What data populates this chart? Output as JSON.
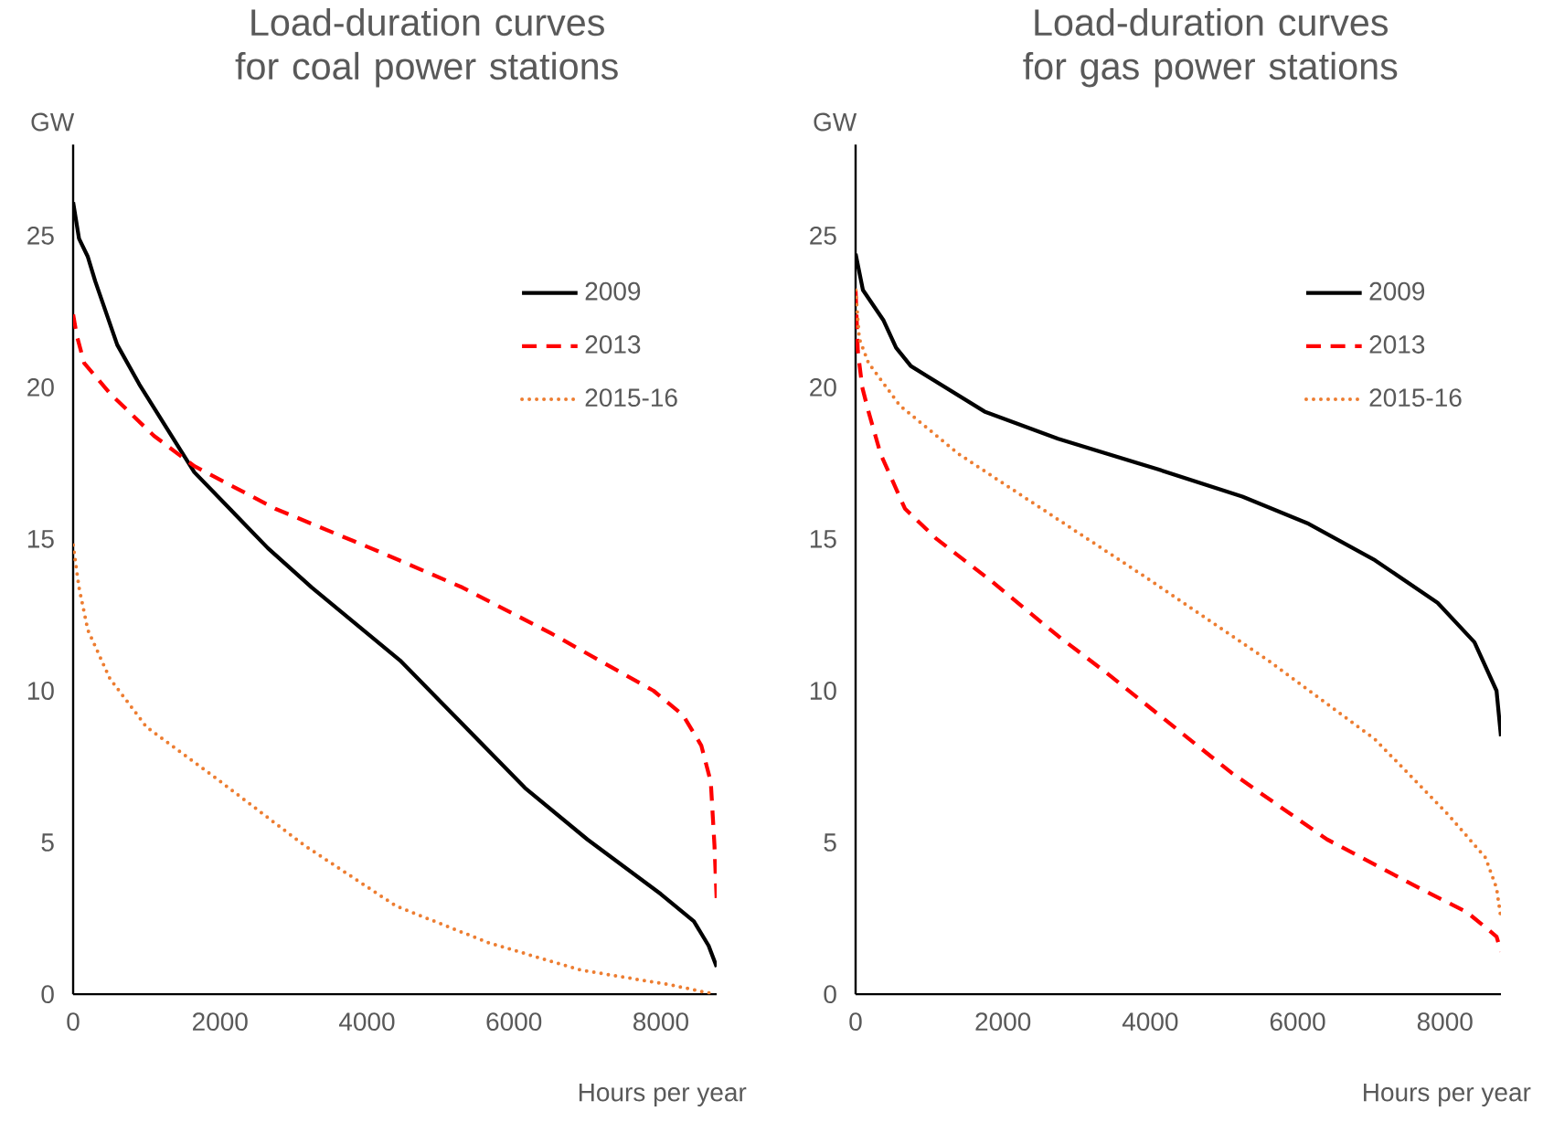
{
  "chart_data": [
    {
      "type": "line",
      "title": "Load-duration curves for coal power stations",
      "ylabel": "GW",
      "xlabel": "Hours per year",
      "xlim": [
        0,
        8760
      ],
      "xticks": [
        0,
        2000,
        4000,
        6000,
        8000
      ],
      "ylim": [
        0,
        28
      ],
      "yticks": [
        0,
        5,
        10,
        15,
        20,
        25
      ],
      "legend": "top right",
      "series": [
        {
          "name": "2009",
          "color": "#000000",
          "line_style": "solid",
          "x": [
            0,
            80,
            200,
            300,
            600,
            900,
            1650,
            2650,
            3250,
            4150,
            4450,
            6150,
            7000,
            8000,
            8450,
            8650,
            8760
          ],
          "values": [
            26.1,
            24.9,
            24.3,
            23.5,
            21.4,
            20.1,
            17.2,
            14.7,
            13.4,
            11.6,
            11.0,
            6.8,
            5.1,
            3.3,
            2.4,
            1.6,
            0.9
          ]
        },
        {
          "name": "2013",
          "color": "#ff0000",
          "line_style": "dashed",
          "x": [
            0,
            50,
            150,
            500,
            1100,
            1650,
            2750,
            4150,
            5300,
            6500,
            7900,
            8300,
            8550,
            8680,
            8730,
            8760
          ],
          "values": [
            22.4,
            21.7,
            20.8,
            19.8,
            18.4,
            17.4,
            16.0,
            14.6,
            13.4,
            11.9,
            10.0,
            9.2,
            8.2,
            7.0,
            4.9,
            3.1
          ]
        },
        {
          "name": "2015-16",
          "color": "#ed7d31",
          "line_style": "dotted",
          "x": [
            0,
            80,
            200,
            500,
            1000,
            1900,
            3150,
            4400,
            5650,
            6900,
            8150,
            8730
          ],
          "values": [
            14.8,
            13.4,
            12.0,
            10.4,
            8.8,
            7.2,
            4.9,
            2.9,
            1.7,
            0.8,
            0.3,
            0
          ]
        }
      ]
    },
    {
      "type": "line",
      "title": "Load-duration curves for gas power stations",
      "ylabel": "GW",
      "xlabel": "Hours per year",
      "xlim": [
        0,
        8760
      ],
      "xticks": [
        0,
        2000,
        4000,
        6000,
        8000
      ],
      "ylim": [
        0,
        28
      ],
      "yticks": [
        0,
        5,
        10,
        15,
        20,
        25
      ],
      "legend": "top right",
      "series": [
        {
          "name": "2009",
          "color": "#000000",
          "line_style": "solid",
          "x": [
            0,
            100,
            380,
            550,
            750,
            1750,
            2750,
            4100,
            5250,
            6150,
            7050,
            7900,
            8400,
            8700,
            8760
          ],
          "values": [
            24.4,
            23.2,
            22.2,
            21.3,
            20.7,
            19.2,
            18.3,
            17.3,
            16.4,
            15.5,
            14.3,
            12.9,
            11.6,
            10.0,
            8.5
          ]
        },
        {
          "name": "2013",
          "color": "#ff0000",
          "line_style": "dashed",
          "x": [
            0,
            30,
            90,
            175,
            340,
            670,
            1100,
            1850,
            2750,
            3400,
            5100,
            6400,
            7650,
            8300,
            8700,
            8760
          ],
          "values": [
            23.2,
            21.2,
            20.0,
            19.2,
            17.8,
            16.0,
            15.0,
            13.6,
            11.8,
            10.6,
            7.3,
            5.1,
            3.5,
            2.7,
            1.9,
            1.4
          ]
        },
        {
          "name": "2015-16",
          "color": "#ed7d31",
          "line_style": "dotted",
          "x": [
            0,
            50,
            175,
            600,
            1400,
            2650,
            3900,
            5600,
            7050,
            8050,
            8550,
            8700,
            8760
          ],
          "values": [
            23.2,
            21.6,
            20.8,
            19.4,
            17.8,
            15.8,
            13.8,
            11.0,
            8.4,
            5.9,
            4.5,
            3.5,
            2.5
          ]
        }
      ]
    }
  ]
}
